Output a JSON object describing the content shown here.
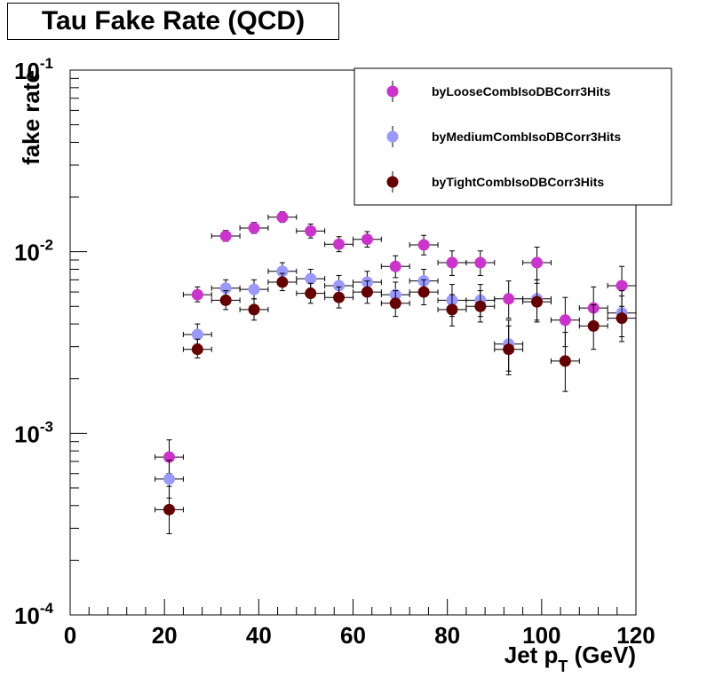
{
  "chart_data": {
    "type": "scatter",
    "title": "Tau Fake Rate (QCD)",
    "xlabel": "Jet p",
    "xlabel_sub": "T",
    "xlabel_unit": " (GeV)",
    "ylabel": "fake rate",
    "xlim": [
      0,
      120
    ],
    "ylim": [
      0.0001,
      0.1
    ],
    "yscale": "log",
    "grid": false,
    "legend_position": "top-right",
    "x_ticks": [
      "0",
      "20",
      "40",
      "60",
      "80",
      "100",
      "120"
    ],
    "y_ticks": [
      {
        "base": "10",
        "exp": "-4"
      },
      {
        "base": "10",
        "exp": "-3"
      },
      {
        "base": "10",
        "exp": "-2"
      },
      {
        "base": "10",
        "exp": "-1"
      }
    ],
    "x": [
      21,
      27,
      33,
      39,
      45,
      51,
      57,
      63,
      69,
      75,
      81,
      87,
      93,
      99,
      105,
      111,
      117
    ],
    "x_err": 3,
    "series": [
      {
        "name": "byLooseCombIsoDBCorr3Hits",
        "color": "#cc33cc",
        "values": [
          0.00074,
          0.0058,
          0.0122,
          0.0135,
          0.0155,
          0.013,
          0.011,
          0.0117,
          0.0083,
          0.0109,
          0.0087,
          0.0087,
          0.0055,
          0.0087,
          0.0042,
          0.0049,
          0.0065
        ],
        "err_lo": [
          0.00014,
          0.0005,
          0.0008,
          0.0009,
          0.001,
          0.0011,
          0.001,
          0.0011,
          0.0011,
          0.0013,
          0.0013,
          0.0013,
          0.0012,
          0.0017,
          0.0012,
          0.0012,
          0.0015
        ],
        "err_hi": [
          0.00018,
          0.0006,
          0.0009,
          0.001,
          0.0011,
          0.0012,
          0.0011,
          0.0012,
          0.0012,
          0.0014,
          0.0014,
          0.0014,
          0.0014,
          0.0019,
          0.0014,
          0.0015,
          0.0018
        ]
      },
      {
        "name": "byMediumCombIsoDBCorr3Hits",
        "color": "#9999ff",
        "values": [
          0.00056,
          0.0035,
          0.0063,
          0.0062,
          0.0078,
          0.0071,
          0.0065,
          0.0068,
          0.0058,
          0.0069,
          0.0054,
          0.0054,
          0.0031,
          0.0055,
          null,
          null,
          0.0046
        ],
        "err_lo": [
          0.00012,
          0.0004,
          0.0006,
          0.0007,
          0.0008,
          0.0008,
          0.0008,
          0.0009,
          0.0009,
          0.001,
          0.001,
          0.001,
          0.0009,
          0.0013,
          null,
          null,
          0.0012
        ],
        "err_hi": [
          0.00015,
          0.0005,
          0.0007,
          0.0008,
          0.0009,
          0.0009,
          0.0009,
          0.001,
          0.001,
          0.0011,
          0.0012,
          0.0012,
          0.0011,
          0.0015,
          null,
          null,
          0.0015
        ]
      },
      {
        "name": "byTightCombIsoDBCorr3Hits",
        "color": "#660000",
        "values": [
          0.00038,
          0.0029,
          0.0054,
          0.0048,
          0.0068,
          0.0059,
          0.0056,
          0.006,
          0.0052,
          0.006,
          0.0048,
          0.005,
          0.0029,
          0.0053,
          0.0025,
          0.0039,
          0.0043
        ],
        "err_lo": [
          0.0001,
          0.0003,
          0.0006,
          0.0006,
          0.0007,
          0.0007,
          0.0007,
          0.0008,
          0.0008,
          0.0009,
          0.0009,
          0.0009,
          0.0008,
          0.0012,
          0.0008,
          0.001,
          0.0011
        ],
        "err_hi": [
          0.00013,
          0.0004,
          0.0007,
          0.0007,
          0.0008,
          0.0008,
          0.0008,
          0.0009,
          0.0009,
          0.001,
          0.001,
          0.0011,
          0.001,
          0.0014,
          0.0011,
          0.0012,
          0.0014
        ]
      }
    ]
  }
}
